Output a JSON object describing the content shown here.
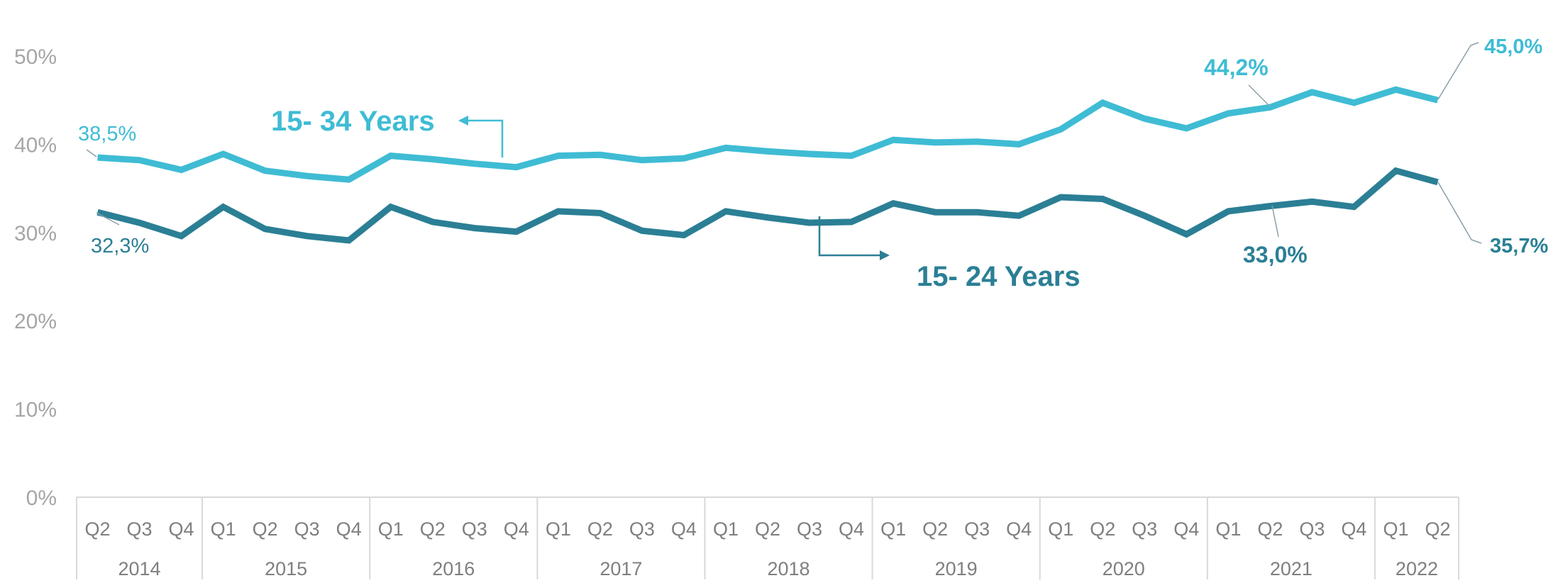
{
  "chart_data": {
    "type": "line",
    "y_tick_labels": [
      "0%",
      "10%",
      "20%",
      "30%",
      "40%",
      "50%"
    ],
    "ylim": [
      0,
      50
    ],
    "grid": false,
    "x": [
      "Q2",
      "Q3",
      "Q4",
      "Q1",
      "Q2",
      "Q3",
      "Q4",
      "Q1",
      "Q2",
      "Q3",
      "Q4",
      "Q1",
      "Q2",
      "Q3",
      "Q4",
      "Q1",
      "Q2",
      "Q3",
      "Q4",
      "Q1",
      "Q2",
      "Q3",
      "Q4",
      "Q1",
      "Q2",
      "Q3",
      "Q4",
      "Q1",
      "Q2",
      "Q3",
      "Q4",
      "Q1",
      "Q2"
    ],
    "year_groups": [
      {
        "label": "2014",
        "count": 3
      },
      {
        "label": "2015",
        "count": 4
      },
      {
        "label": "2016",
        "count": 4
      },
      {
        "label": "2017",
        "count": 4
      },
      {
        "label": "2018",
        "count": 4
      },
      {
        "label": "2019",
        "count": 4
      },
      {
        "label": "2020",
        "count": 4
      },
      {
        "label": "2021",
        "count": 4
      },
      {
        "label": "2022",
        "count": 2
      }
    ],
    "series": [
      {
        "name": "15- 34 Years",
        "color": "#3fbcd4",
        "values": [
          38.5,
          38.2,
          37.1,
          38.9,
          37.0,
          36.4,
          36.0,
          38.7,
          38.3,
          37.8,
          37.4,
          38.7,
          38.8,
          38.2,
          38.4,
          39.6,
          39.2,
          38.9,
          38.7,
          40.5,
          40.2,
          40.3,
          40.0,
          41.7,
          44.7,
          42.9,
          41.8,
          43.5,
          44.2,
          45.9,
          44.7,
          46.2,
          45.0
        ]
      },
      {
        "name": "15- 24 Years",
        "color": "#2b7f95",
        "values": [
          32.3,
          31.1,
          29.6,
          32.9,
          30.4,
          29.6,
          29.1,
          32.9,
          31.2,
          30.5,
          30.1,
          32.4,
          32.2,
          30.2,
          29.7,
          32.4,
          31.7,
          31.1,
          31.2,
          33.3,
          32.3,
          32.3,
          31.9,
          34.0,
          33.8,
          31.9,
          29.8,
          32.4,
          33.0,
          33.5,
          32.9,
          37.0,
          35.7
        ]
      }
    ],
    "annotations": {
      "s34_first": "38,5%",
      "s24_first": "32,3%",
      "s34_mid": "44,2%",
      "s24_mid": "33,0%",
      "s34_last": "45,0%",
      "s24_last": "35,7%"
    }
  }
}
